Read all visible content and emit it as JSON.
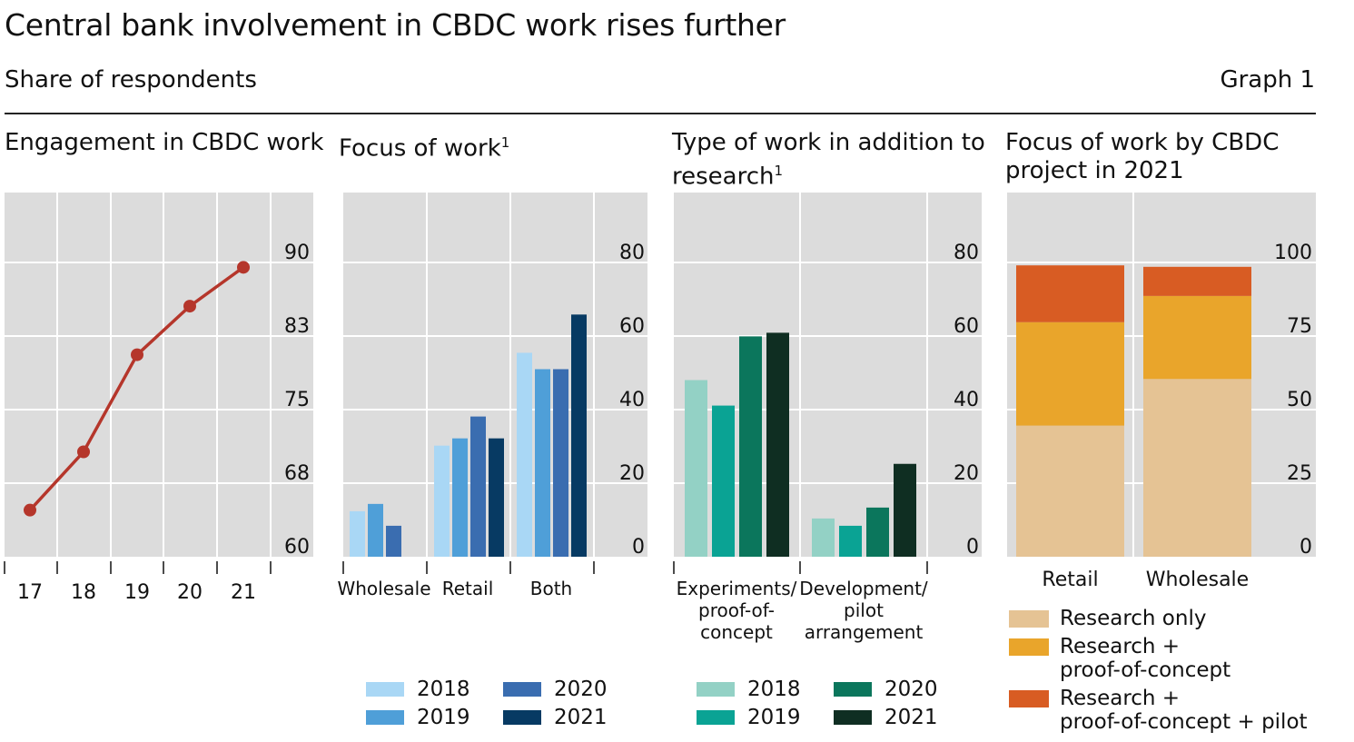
{
  "header": {
    "title": "Central bank involvement in CBDC work rises further",
    "subtitle": "Share of respondents",
    "graph_label": "Graph 1"
  },
  "colors": {
    "plot_bg": "#dcdcdc",
    "grid": "#ffffff",
    "line": "#b5362b",
    "blue_2018": "#a9d7f5",
    "blue_2019": "#4f9fd8",
    "blue_2020": "#3a6db0",
    "blue_2021": "#073a63",
    "green_2018": "#93d1c5",
    "green_2019": "#0aa394",
    "green_2020": "#0b765c",
    "green_2021": "#0f2e22",
    "research_only": "#e5c394",
    "research_poc": "#e9a52b",
    "research_poc_pilot": "#d85c23"
  },
  "panels": {
    "p1": {
      "title": "Engagement in CBDC work"
    },
    "p2": {
      "title": "Focus of work",
      "footnote": "1"
    },
    "p3": {
      "title_line1": "Type of work in addition to",
      "title_line2": "research",
      "footnote": "1"
    },
    "p4": {
      "title_line1": "Focus of work by CBDC",
      "title_line2": "project in 2021"
    }
  },
  "legend_blue": [
    {
      "label": "2018",
      "color": "#a9d7f5"
    },
    {
      "label": "2019",
      "color": "#4f9fd8"
    },
    {
      "label": "2020",
      "color": "#3a6db0"
    },
    {
      "label": "2021",
      "color": "#073a63"
    }
  ],
  "legend_green": [
    {
      "label": "2018",
      "color": "#93d1c5"
    },
    {
      "label": "2019",
      "color": "#0aa394"
    },
    {
      "label": "2020",
      "color": "#0b765c"
    },
    {
      "label": "2021",
      "color": "#0f2e22"
    }
  ],
  "legend_stack": [
    {
      "label_line1": "Research only",
      "label_line2": "",
      "color": "#e5c394"
    },
    {
      "label_line1": "Research +",
      "label_line2": "proof-of-concept",
      "color": "#e9a52b"
    },
    {
      "label_line1": "Research +",
      "label_line2": "proof-of-concept + pilot",
      "color": "#d85c23"
    }
  ],
  "chart_data": [
    {
      "type": "line",
      "title": "Engagement in CBDC work",
      "x": [
        "17",
        "18",
        "19",
        "20",
        "21"
      ],
      "values": [
        64.8,
        70.8,
        80.8,
        85.8,
        89.8
      ],
      "ylim": [
        60,
        97.5
      ],
      "yticks": [
        "60",
        "68",
        "75",
        "83",
        "90"
      ],
      "ylabel": "",
      "xlabel": ""
    },
    {
      "type": "bar",
      "title": "Focus of work",
      "categories": [
        "Wholesale",
        "Retail",
        "Both"
      ],
      "series": [
        {
          "name": "2018",
          "values": [
            12.5,
            30.5,
            56
          ]
        },
        {
          "name": "2019",
          "values": [
            14.5,
            32.5,
            51.5
          ]
        },
        {
          "name": "2020",
          "values": [
            8.5,
            38.5,
            51.5
          ]
        },
        {
          "name": "2021",
          "values": [
            null,
            32.5,
            66.5
          ]
        }
      ],
      "ylim": [
        0,
        100
      ],
      "yticks": [
        "0",
        "20",
        "40",
        "60",
        "80"
      ]
    },
    {
      "type": "bar",
      "title": "Type of work in addition to research",
      "categories": [
        "Experiments/ proof-of- concept",
        "Development/ pilot arrangement"
      ],
      "category_lines": [
        [
          "Experiments/",
          "proof-of-",
          "concept"
        ],
        [
          "Development/",
          "pilot",
          "arrangement"
        ]
      ],
      "series": [
        {
          "name": "2018",
          "values": [
            48.5,
            10.5
          ]
        },
        {
          "name": "2019",
          "values": [
            41.5,
            8.5
          ]
        },
        {
          "name": "2020",
          "values": [
            60.5,
            13.5
          ]
        },
        {
          "name": "2021",
          "values": [
            61.5,
            25.5
          ]
        }
      ],
      "ylim": [
        0,
        100
      ],
      "yticks": [
        "0",
        "20",
        "40",
        "60",
        "80"
      ]
    },
    {
      "type": "bar",
      "stacked": true,
      "title": "Focus of work by CBDC project in 2021",
      "categories": [
        "Retail",
        "Wholesale"
      ],
      "series": [
        {
          "name": "Research only",
          "values": [
            45,
            61
          ]
        },
        {
          "name": "Research + proof-of-concept",
          "values": [
            35.5,
            28.5
          ]
        },
        {
          "name": "Research + proof-of-concept + pilot",
          "values": [
            19.5,
            10
          ]
        }
      ],
      "ylim": [
        0,
        125
      ],
      "yticks": [
        "0",
        "25",
        "50",
        "75",
        "100"
      ]
    }
  ]
}
